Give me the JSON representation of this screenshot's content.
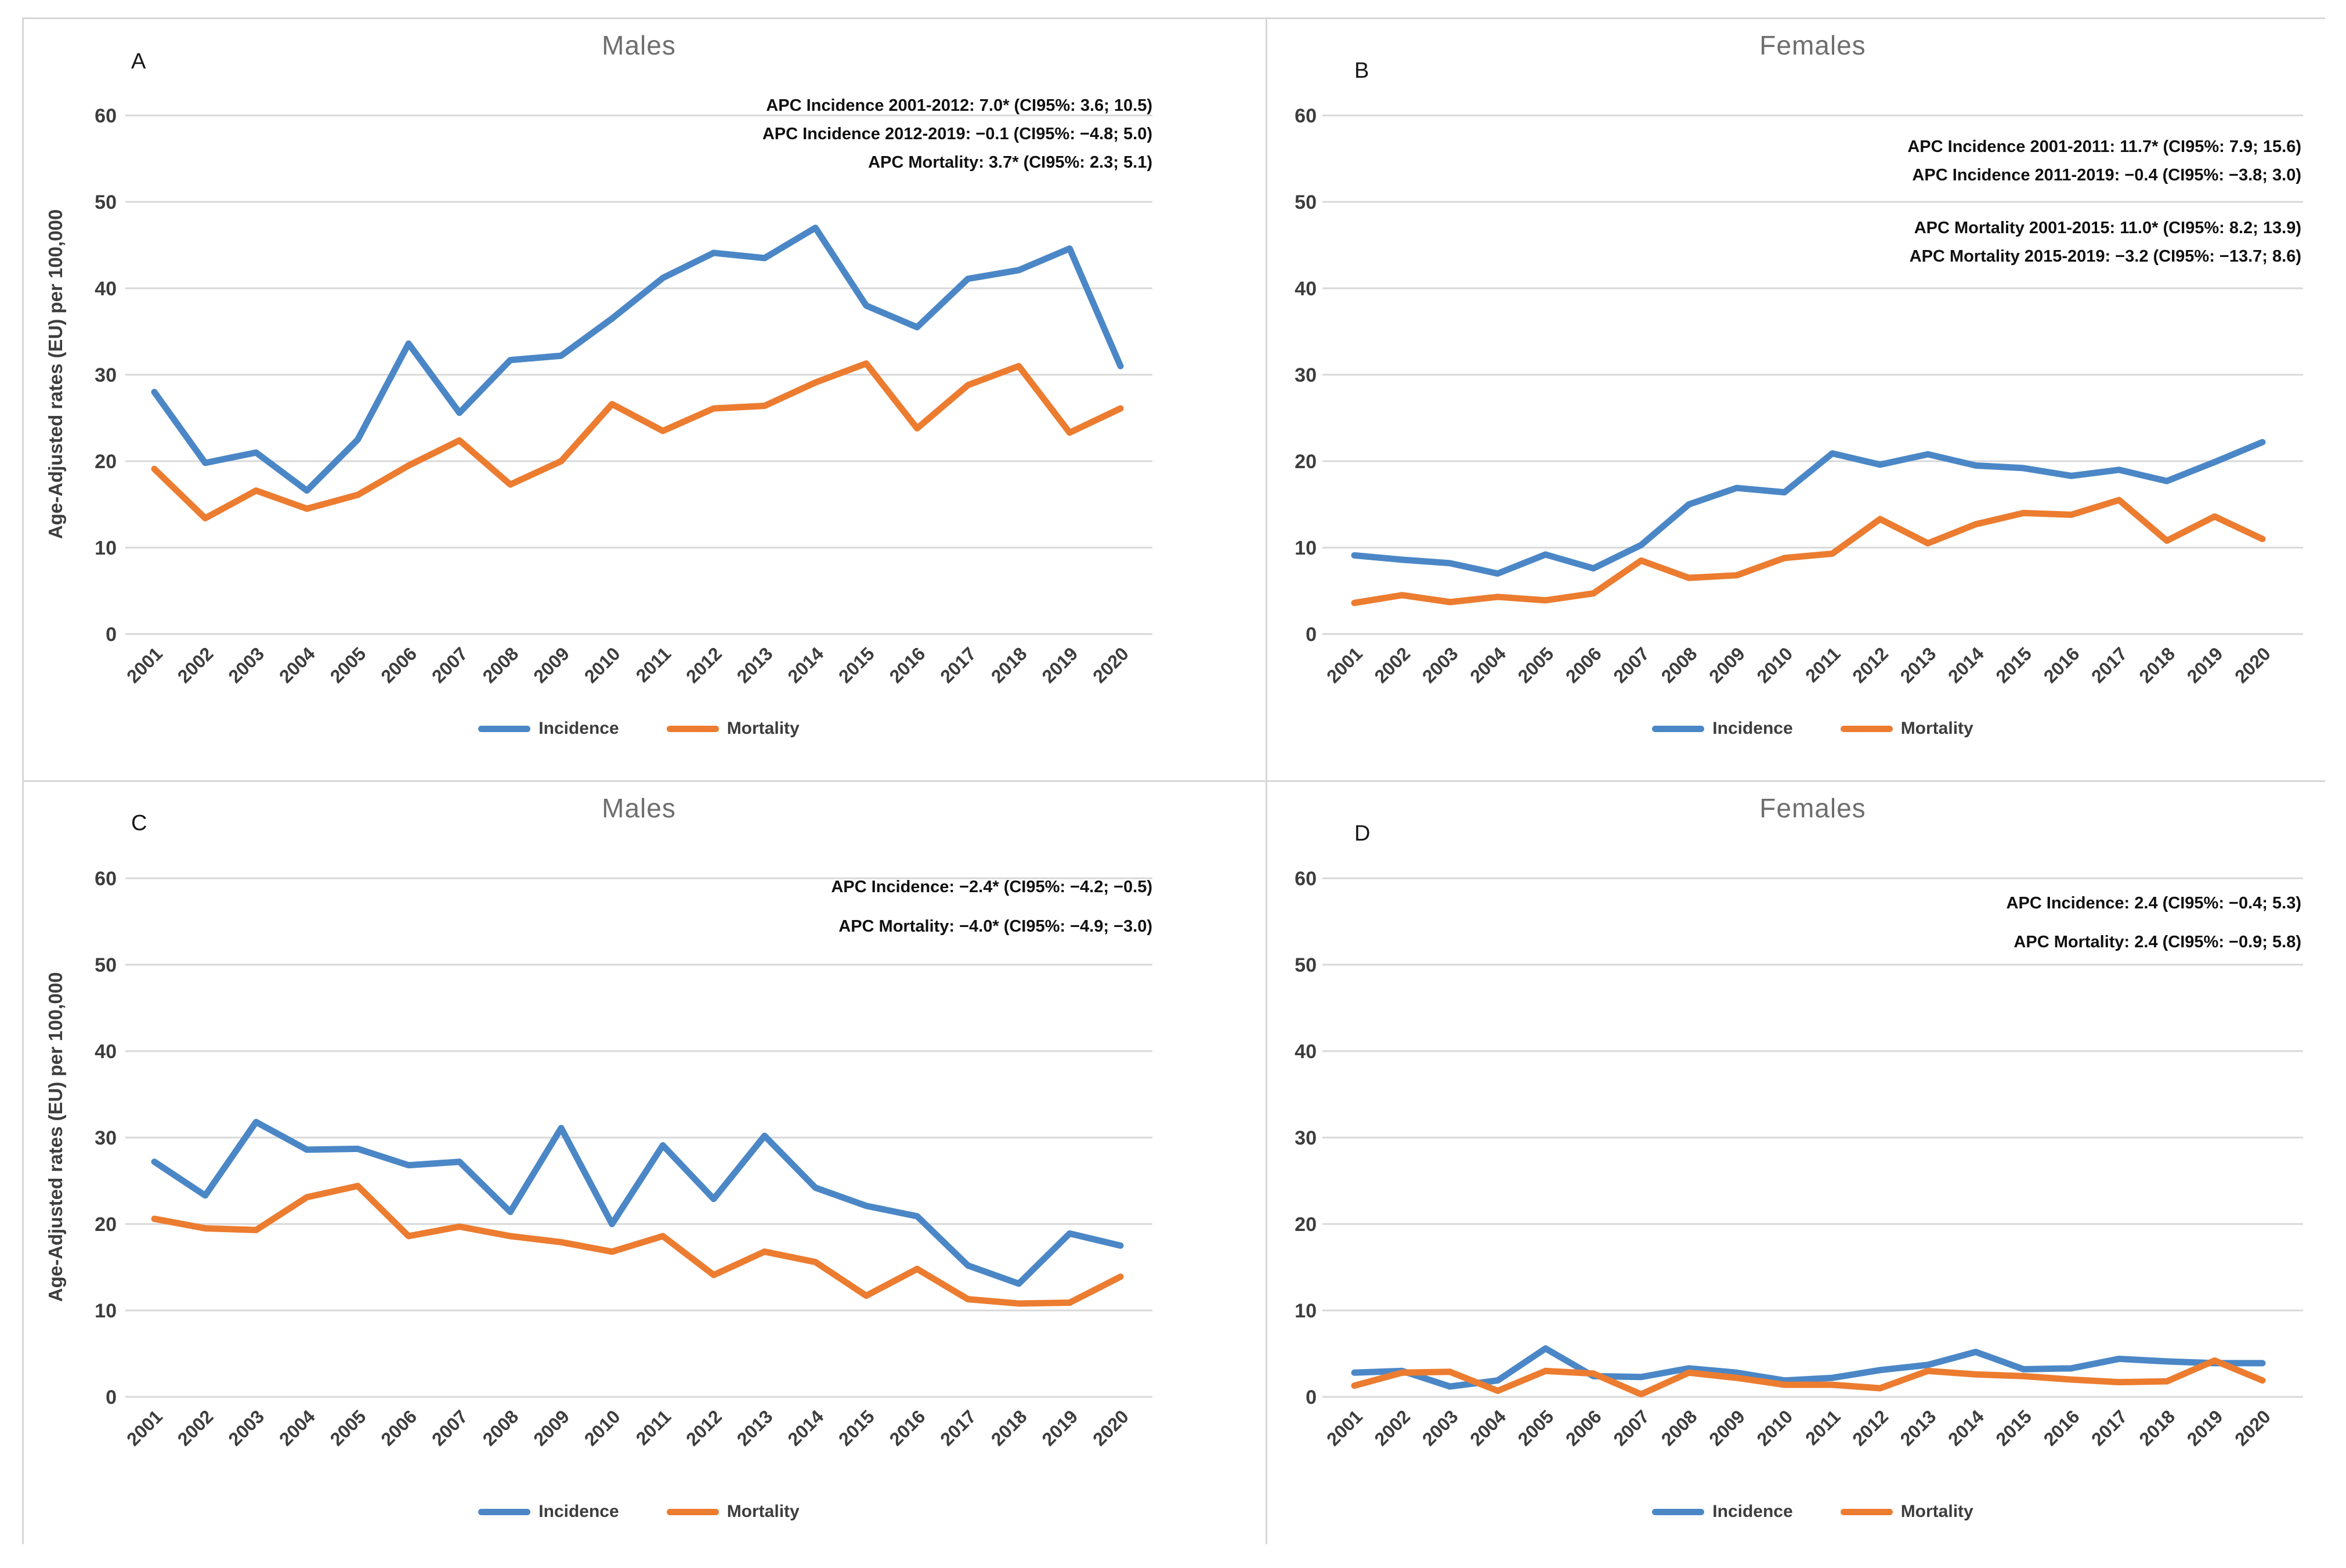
{
  "figure": {
    "description": "Four-panel line chart figure of age-adjusted incidence and mortality rates",
    "panel_order": [
      "A",
      "B",
      "C",
      "D"
    ]
  },
  "y_axis_title": "Age-Adjusted rates (EU) per 100,000",
  "legend": {
    "incidence": "Incidence",
    "mortality": "Mortality"
  },
  "colors": {
    "incidence": "#4b87c6",
    "mortality": "#ec7c30",
    "gridline": "#d8d8d8",
    "tick_text": "#3d3d3d",
    "title_text": "#6e6e6e",
    "annotation_text": "#101010"
  },
  "years": [
    2001,
    2002,
    2003,
    2004,
    2005,
    2006,
    2007,
    2008,
    2009,
    2010,
    2011,
    2012,
    2013,
    2014,
    2015,
    2016,
    2017,
    2018,
    2019,
    2020
  ],
  "yticks": [
    0,
    10,
    20,
    30,
    40,
    50,
    60
  ],
  "chart_data": [
    {
      "type": "line",
      "panel_label": "A",
      "title": "Males",
      "xlabel": "",
      "ylabel": "Age-Adjusted rates (EU) per 100,000",
      "ylim": [
        0,
        60
      ],
      "grid": true,
      "legend_position": "bottom",
      "annotation_groups": [
        [
          "APC Incidence 2001-2012: 7.0* (CI95%: 3.6; 10.5)",
          "APC Incidence 2012-2019: −0.1 (CI95%: −4.8; 5.0)",
          "APC Mortality: 3.7* (CI95%: 2.3; 5.1)"
        ]
      ],
      "series": [
        {
          "name": "Incidence",
          "values": [
            28,
            19.8,
            21,
            16.6,
            22.5,
            33.6,
            25.6,
            31.7,
            32.2,
            36.5,
            41.2,
            44.1,
            43.5,
            47,
            38,
            35.5,
            41.1,
            42.1,
            44.6,
            31
          ]
        },
        {
          "name": "Mortality",
          "values": [
            19.1,
            13.4,
            16.6,
            14.5,
            16.1,
            19.5,
            22.4,
            17.3,
            20,
            26.6,
            23.5,
            26.1,
            26.4,
            29.1,
            31.3,
            23.8,
            28.8,
            31,
            23.3,
            26.1
          ]
        }
      ]
    },
    {
      "type": "line",
      "panel_label": "B",
      "title": "Females",
      "xlabel": "",
      "ylabel": "Age-Adjusted rates (EU) per 100,000",
      "ylim": [
        0,
        60
      ],
      "grid": true,
      "legend_position": "bottom",
      "annotation_groups": [
        [
          "APC Incidence 2001-2011: 11.7* (CI95%: 7.9; 15.6)",
          "APC Incidence 2011-2019: −0.4 (CI95%: −3.8; 3.0)"
        ],
        [
          "APC Mortality 2001-2015: 11.0* (CI95%: 8.2; 13.9)",
          "APC Mortality 2015-2019: −3.2 (CI95%: −13.7; 8.6)"
        ]
      ],
      "series": [
        {
          "name": "Incidence",
          "values": [
            9.1,
            8.6,
            8.2,
            7,
            9.2,
            7.6,
            10.3,
            15,
            16.9,
            16.4,
            20.9,
            19.6,
            20.8,
            19.5,
            19.2,
            18.3,
            19,
            17.7,
            19.9,
            22.2
          ]
        },
        {
          "name": "Mortality",
          "values": [
            3.6,
            4.5,
            3.7,
            4.3,
            3.9,
            4.7,
            8.5,
            6.5,
            6.8,
            8.8,
            9.3,
            13.3,
            10.5,
            12.7,
            14,
            13.8,
            15.5,
            10.8,
            13.6,
            11
          ]
        }
      ]
    },
    {
      "type": "line",
      "panel_label": "C",
      "title": "Males",
      "xlabel": "",
      "ylabel": "Age-Adjusted rates (EU) per 100,000",
      "ylim": [
        0,
        60
      ],
      "grid": true,
      "legend_position": "bottom",
      "annotation_groups": [
        [
          "APC Incidence: −2.4* (CI95%: −4.2; −0.5)",
          "APC Mortality: −4.0* (CI95%: −4.9; −3.0)"
        ]
      ],
      "series": [
        {
          "name": "Incidence",
          "values": [
            27.2,
            23.3,
            31.8,
            28.6,
            28.7,
            26.8,
            27.2,
            21.4,
            31.1,
            20,
            29.1,
            22.9,
            30.2,
            24.2,
            22.1,
            20.9,
            15.2,
            13.1,
            18.9,
            17.5
          ]
        },
        {
          "name": "Mortality",
          "values": [
            20.6,
            19.5,
            19.3,
            23.1,
            24.4,
            18.6,
            19.7,
            18.6,
            17.9,
            16.8,
            18.6,
            14.1,
            16.8,
            15.6,
            11.7,
            14.8,
            11.3,
            10.8,
            10.9,
            13.9
          ]
        }
      ]
    },
    {
      "type": "line",
      "panel_label": "D",
      "title": "Females",
      "xlabel": "",
      "ylabel": "Age-Adjusted rates (EU) per 100,000",
      "ylim": [
        0,
        60
      ],
      "grid": true,
      "legend_position": "bottom",
      "annotation_groups": [
        [
          "APC Incidence: 2.4 (CI95%: −0.4; 5.3)",
          "APC Mortality: 2.4 (CI95%: −0.9; 5.8)"
        ]
      ],
      "series": [
        {
          "name": "Incidence",
          "values": [
            2.8,
            3,
            1.2,
            1.9,
            5.6,
            2.4,
            2.3,
            3.3,
            2.8,
            1.9,
            2.2,
            3.1,
            3.7,
            5.2,
            3.2,
            3.3,
            4.4,
            4.1,
            3.9,
            3.9
          ]
        },
        {
          "name": "Mortality",
          "values": [
            1.3,
            2.8,
            2.9,
            0.7,
            3,
            2.7,
            0.3,
            2.8,
            2.2,
            1.4,
            1.4,
            1,
            3,
            2.6,
            2.4,
            2,
            1.7,
            1.8,
            4.2,
            1.9
          ]
        }
      ]
    }
  ]
}
